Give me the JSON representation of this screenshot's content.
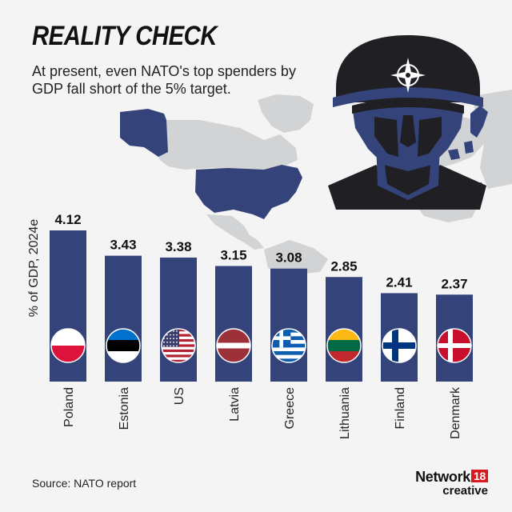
{
  "header": {
    "headline": "REALITY CHECK",
    "subtitle": "At present, even NATO's top spenders by GDP fall short of the 5% target."
  },
  "footer": {
    "source": "Source: NATO report",
    "brand_name": "Network",
    "brand_number": "18",
    "brand_sub": "creative"
  },
  "colors": {
    "bar": "#34437a",
    "map_grey": "#d2d3d5",
    "map_blue": "#34437a",
    "soldier": "#1f1f24"
  },
  "icons": [
    "nato-compass-icon",
    "soldier-helmet-icon",
    "world-map-icon"
  ],
  "chart_data": {
    "type": "bar",
    "ylabel": "% of GDP, 2024e",
    "categories": [
      "Poland",
      "Estonia",
      "US",
      "Latvia",
      "Greece",
      "Lithuania",
      "Finland",
      "Denmark"
    ],
    "values": [
      4.12,
      3.43,
      3.38,
      3.15,
      3.08,
      2.85,
      2.41,
      2.37
    ],
    "value_labels": [
      "4.12",
      "3.43",
      "3.38",
      "3.15",
      "3.08",
      "2.85",
      "2.41",
      "2.37"
    ],
    "flags": [
      "poland-flag-icon",
      "estonia-flag-icon",
      "us-flag-icon",
      "latvia-flag-icon",
      "greece-flag-icon",
      "lithuania-flag-icon",
      "finland-flag-icon",
      "denmark-flag-icon"
    ],
    "ylim": [
      0,
      4.12
    ],
    "grid": false,
    "legend": "none"
  }
}
